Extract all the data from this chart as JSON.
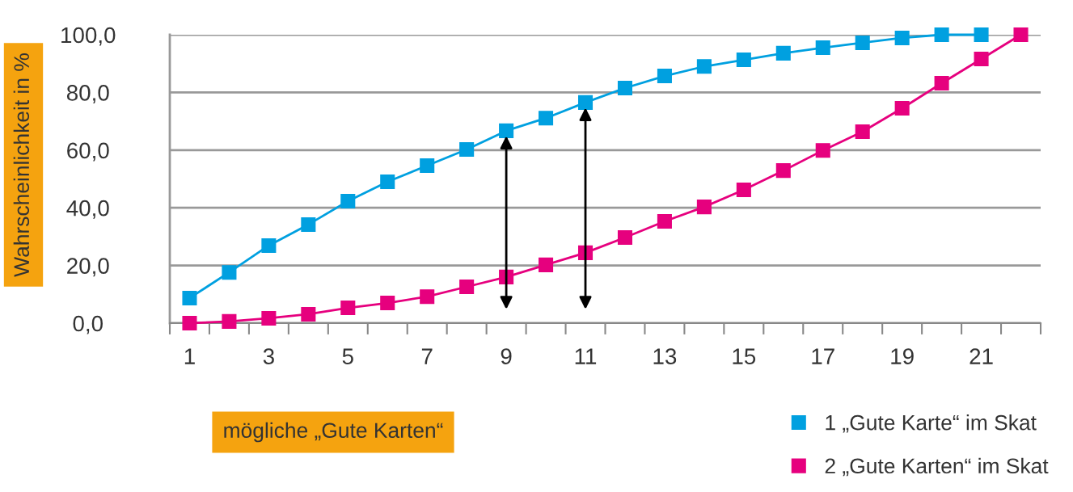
{
  "chart_data": {
    "type": "line",
    "xlabel": "mögliche „Gute Karten“",
    "ylabel": "Wahrscheinlichkeit in %",
    "categories": [
      "1",
      null,
      "3",
      null,
      "5",
      null,
      "7",
      null,
      "9",
      null,
      "11",
      null,
      "13",
      null,
      "15",
      null,
      "17",
      null,
      "19",
      null,
      "21",
      null
    ],
    "series": [
      {
        "name": "1 „Gute Karte“ im Skat",
        "color": "#00a0e0",
        "values": [
          8.7,
          17.6,
          26.9,
          34.2,
          42.3,
          49.0,
          54.6,
          60.2,
          66.7,
          71.1,
          76.5,
          81.5,
          85.7,
          89.0,
          91.3,
          93.6,
          95.5,
          97.2,
          98.9,
          100.0,
          100.0,
          null
        ]
      },
      {
        "name": "2 „Gute Karten“ im Skat",
        "color": "#e6007e",
        "values": [
          0.0,
          0.6,
          1.7,
          3.1,
          5.3,
          7.0,
          9.2,
          12.6,
          16.0,
          20.2,
          24.4,
          29.7,
          35.3,
          40.3,
          46.2,
          52.9,
          59.9,
          66.4,
          74.5,
          83.2,
          91.6,
          100.0
        ]
      }
    ],
    "ylim": [
      0,
      100
    ],
    "yticks": [
      {
        "value": 0,
        "label": "0,0"
      },
      {
        "value": 20,
        "label": "20,0"
      },
      {
        "value": 40,
        "label": "40,0"
      },
      {
        "value": 60,
        "label": "60,0"
      },
      {
        "value": 80,
        "label": "80,0"
      },
      {
        "value": 100,
        "label": "100,0"
      }
    ],
    "grid": "y",
    "legend": "bottom right",
    "marker": "square",
    "line_style": "solid"
  }
}
